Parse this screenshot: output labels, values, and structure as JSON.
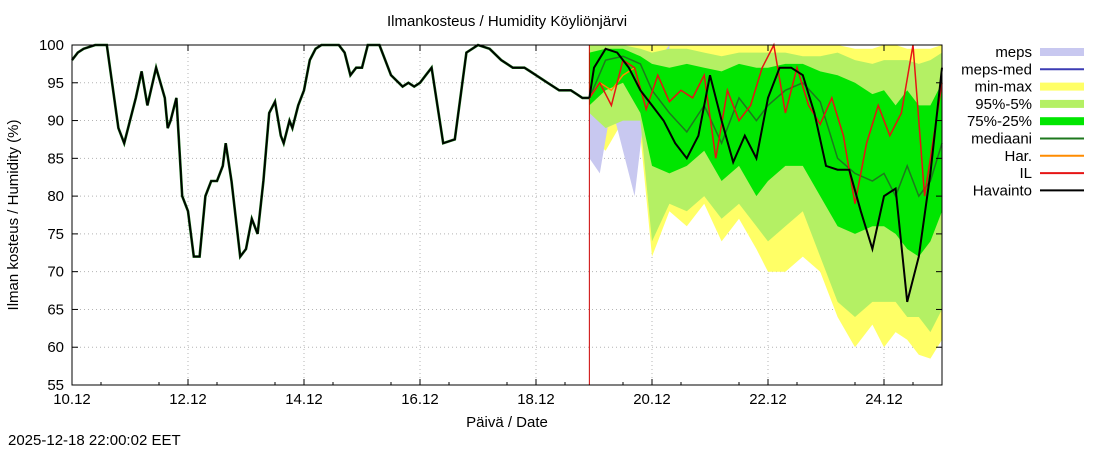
{
  "chart_data": {
    "type": "line",
    "title": "Ilmankosteus / Humidity  Köyliönjärvi",
    "xlabel": "Päivä / Date",
    "ylabel": "Ilman kosteus / Humidity (%)",
    "timestamp": "2025-12-18 22:00:02 EET",
    "x_unit": "days since 10.12 00:00",
    "xlim": [
      0,
      15
    ],
    "ylim": [
      55,
      100
    ],
    "yticks": [
      55,
      60,
      65,
      70,
      75,
      80,
      85,
      90,
      95,
      100
    ],
    "xticks": [
      {
        "x": 0,
        "label": "10.12"
      },
      {
        "x": 2,
        "label": "12.12"
      },
      {
        "x": 4,
        "label": "14.12"
      },
      {
        "x": 6,
        "label": "16.12"
      },
      {
        "x": 8,
        "label": "18.12"
      },
      {
        "x": 10,
        "label": "20.12"
      },
      {
        "x": 12,
        "label": "22.12"
      },
      {
        "x": 14,
        "label": "24.12"
      }
    ],
    "grid": true,
    "forecast_start_x": 8.92,
    "colors": {
      "meps": "#c8c8f0",
      "meps_med": "#3c3cb4",
      "min_max": "#ffff66",
      "p95_5": "#b4f064",
      "p75_25": "#00e600",
      "mediaani": "#1e781e",
      "har": "#ff8c00",
      "il": "#e61414",
      "havainto": "#000000",
      "now_line": "#cc0000",
      "grid": "#b4b4b4"
    },
    "legend": [
      {
        "key": "meps",
        "label": "meps",
        "style": "box"
      },
      {
        "key": "meps_med",
        "label": "meps-med",
        "style": "line"
      },
      {
        "key": "min_max",
        "label": "min-max",
        "style": "box"
      },
      {
        "key": "p95_5",
        "label": "95%-5%",
        "style": "box"
      },
      {
        "key": "p75_25",
        "label": "75%-25%",
        "style": "box"
      },
      {
        "key": "mediaani",
        "label": "mediaani",
        "style": "line"
      },
      {
        "key": "har",
        "label": "Har.",
        "style": "line"
      },
      {
        "key": "il",
        "label": "IL",
        "style": "line"
      },
      {
        "key": "havainto",
        "label": "Havainto",
        "style": "line"
      }
    ],
    "series": {
      "havainto": {
        "x": [
          0,
          0.1,
          0.2,
          0.4,
          0.6,
          0.8,
          0.9,
          1.0,
          1.1,
          1.2,
          1.3,
          1.45,
          1.6,
          1.65,
          1.7,
          1.8,
          1.9,
          2.0,
          2.1,
          2.2,
          2.3,
          2.4,
          2.5,
          2.6,
          2.65,
          2.75,
          2.9,
          3.0,
          3.1,
          3.2,
          3.3,
          3.4,
          3.5,
          3.6,
          3.65,
          3.75,
          3.8,
          3.9,
          4.0,
          4.1,
          4.2,
          4.3,
          4.4,
          4.5,
          4.6,
          4.7,
          4.8,
          4.9,
          5.0,
          5.1,
          5.3,
          5.5,
          5.7,
          5.8,
          5.9,
          6.0,
          6.1,
          6.2,
          6.4,
          6.6,
          6.8,
          7.0,
          7.2,
          7.4,
          7.6,
          7.8,
          7.9,
          8.0,
          8.1,
          8.2,
          8.4,
          8.6,
          8.7,
          8.8,
          8.92
        ],
        "y": [
          98,
          99,
          99.5,
          100,
          100,
          89,
          87,
          90,
          93,
          96.5,
          92,
          97,
          93,
          89,
          90,
          93,
          80,
          78,
          72,
          72,
          80,
          82,
          82,
          84,
          87,
          82,
          72,
          73,
          77,
          75,
          82,
          91,
          92.5,
          88,
          87,
          90,
          89,
          92,
          94,
          98,
          99.5,
          100,
          100,
          100,
          100,
          99,
          96,
          97,
          97,
          100,
          100,
          96,
          94.5,
          95,
          94.5,
          95,
          96,
          97,
          87,
          87.5,
          99,
          100,
          99.5,
          98,
          97,
          97,
          96.5,
          96,
          95.5,
          95,
          94,
          94,
          93.5,
          93,
          93
        ]
      },
      "forecast_observed_like": {
        "x": [
          8.92,
          9.0,
          9.2,
          9.4,
          9.6,
          9.8,
          10.0,
          10.2,
          10.4,
          10.6,
          10.8,
          11.0,
          11.2,
          11.4,
          11.6,
          11.8,
          12.0,
          12.2,
          12.4,
          12.6,
          12.8,
          13.0,
          13.2,
          13.4,
          13.6,
          13.8,
          14.0,
          14.2,
          14.4,
          14.6,
          14.8,
          15.0
        ],
        "y": [
          93,
          97,
          99.5,
          99,
          97,
          94,
          92,
          90,
          87,
          85,
          88,
          96,
          90,
          84.5,
          88,
          85,
          93,
          97,
          97,
          96,
          91,
          84,
          83.5,
          83.5,
          78,
          73,
          80,
          81,
          66,
          72,
          83,
          97
        ]
      },
      "mediaani": {
        "x": [
          8.92,
          9.2,
          9.5,
          9.8,
          10.0,
          10.3,
          10.6,
          10.9,
          11.2,
          11.5,
          11.8,
          12.0,
          12.3,
          12.6,
          12.9,
          13.2,
          13.5,
          13.8,
          14.0,
          14.2,
          14.4,
          14.6,
          14.8,
          15.0
        ],
        "y": [
          93,
          98,
          98.5,
          97.5,
          94,
          91,
          88.5,
          92,
          87,
          93,
          90,
          92,
          94,
          95,
          92.5,
          85,
          83,
          82,
          83,
          80,
          84,
          80,
          82,
          87
        ]
      },
      "il": {
        "x": [
          8.92,
          9.1,
          9.3,
          9.5,
          9.7,
          9.9,
          10.1,
          10.3,
          10.5,
          10.7,
          10.9,
          11.1,
          11.3,
          11.5,
          11.7,
          11.9,
          12.1,
          12.3,
          12.5,
          12.7,
          12.9,
          13.1,
          13.3,
          13.5,
          13.7,
          13.9,
          14.1,
          14.3,
          14.5,
          14.7,
          14.9,
          15.0
        ],
        "y": [
          93,
          95,
          92,
          98,
          97,
          91.5,
          96,
          92.5,
          94,
          93,
          96,
          85,
          94,
          90,
          92,
          97,
          100,
          91,
          97,
          92,
          89.5,
          93,
          88,
          79,
          87,
          92,
          88,
          91,
          100,
          80,
          90,
          95
        ]
      },
      "har": {
        "x": [
          8.92,
          9.1,
          9.3,
          9.5,
          9.7
        ],
        "y": [
          93,
          95,
          94,
          96,
          97
        ]
      },
      "meps": {
        "x": [
          8.92,
          9.1,
          9.3,
          9.5,
          9.7,
          9.9,
          10.1,
          10.3
        ],
        "lo": [
          85,
          83,
          92,
          86,
          80,
          93,
          94,
          95
        ],
        "hi": [
          100,
          100,
          100,
          100,
          99,
          99,
          98,
          100
        ]
      },
      "min_max": {
        "x": [
          8.92,
          9.2,
          9.5,
          9.8,
          10.0,
          10.3,
          10.6,
          10.9,
          11.2,
          11.5,
          11.8,
          12.0,
          12.3,
          12.6,
          12.9,
          13.2,
          13.5,
          13.8,
          14.0,
          14.2,
          14.4,
          14.6,
          14.8,
          15.0
        ],
        "lo": [
          88,
          86,
          90,
          88,
          72,
          78,
          76,
          79,
          74,
          77,
          73,
          70,
          70,
          72,
          70,
          64,
          60,
          63,
          60,
          62,
          61,
          59,
          58.5,
          61
        ],
        "hi": [
          100,
          100,
          100,
          100,
          100,
          100,
          100,
          100,
          100,
          100,
          100,
          100,
          100,
          100,
          100,
          100,
          99.5,
          99.5,
          100,
          100,
          99.5,
          99.5,
          99.5,
          100
        ]
      },
      "p95_5": {
        "x": [
          8.92,
          9.2,
          9.5,
          9.8,
          10.0,
          10.3,
          10.6,
          10.9,
          11.2,
          11.5,
          11.8,
          12.0,
          12.3,
          12.6,
          12.9,
          13.2,
          13.5,
          13.8,
          14.0,
          14.2,
          14.4,
          14.6,
          14.8,
          15.0
        ],
        "lo": [
          91,
          89,
          90,
          90,
          74,
          79,
          78,
          80,
          77,
          79,
          76,
          74,
          76,
          78,
          72,
          66,
          64,
          66,
          66,
          66,
          64,
          64,
          62,
          65
        ],
        "hi": [
          100,
          100,
          100,
          99.5,
          99,
          99.5,
          99.5,
          99,
          98.5,
          99,
          99,
          99,
          99,
          98.5,
          98.5,
          99,
          98,
          97.5,
          98,
          98,
          98,
          97.5,
          98,
          99
        ]
      },
      "p75_25": {
        "x": [
          8.92,
          9.2,
          9.5,
          9.8,
          10.0,
          10.3,
          10.6,
          10.9,
          11.2,
          11.5,
          11.8,
          12.0,
          12.3,
          12.6,
          12.9,
          13.2,
          13.5,
          13.8,
          14.0,
          14.2,
          14.4,
          14.6,
          14.8,
          15.0
        ],
        "lo": [
          92,
          94,
          95,
          91,
          84,
          83,
          84,
          86,
          82,
          84,
          80,
          82,
          84,
          84,
          80,
          76,
          75,
          76,
          76,
          75,
          73,
          72,
          74,
          78
        ],
        "hi": [
          99,
          99.5,
          99.5,
          98.5,
          97.5,
          97,
          97.5,
          97,
          96.5,
          97.5,
          97,
          97,
          97.5,
          97.5,
          96.5,
          96,
          95,
          93.5,
          94,
          92,
          94,
          92,
          92,
          95
        ]
      }
    }
  }
}
